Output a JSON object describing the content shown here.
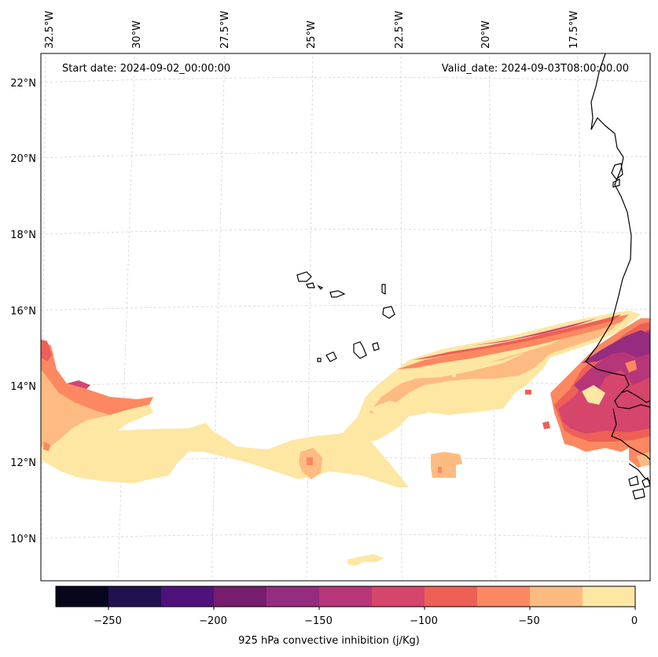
{
  "map": {
    "start_date": "Start date: 2024-09-02_00:00:00",
    "valid_date": "Valid_date: 2024-09-03T08:00:00.00",
    "lon_labels": [
      "32.5°W",
      "30°W",
      "27.5°W",
      "25°W",
      "22.5°W",
      "20°W",
      "17.5°W"
    ],
    "lat_labels": [
      "22°N",
      "20°N",
      "18°N",
      "16°N",
      "14°N",
      "12°N",
      "10°N"
    ],
    "coastline_color": "#000000",
    "gridline_color": "#cccccc"
  },
  "colorbar": {
    "label": "925 hPa convective inhibition (j/Kg)",
    "tick_labels": [
      "−250",
      "−200",
      "−150",
      "−100",
      "−50",
      "0"
    ],
    "range": [
      -275,
      0
    ],
    "levels": [
      -275,
      -250,
      -225,
      -200,
      -175,
      -150,
      -125,
      -100,
      -75,
      -50,
      -25,
      0
    ],
    "colors": [
      "#07061c",
      "#221150",
      "#4f117b",
      "#781c6d",
      "#962c80",
      "#b63679",
      "#d6456c",
      "#ee6055",
      "#fb8861",
      "#febb81",
      "#fde7a3"
    ]
  }
}
